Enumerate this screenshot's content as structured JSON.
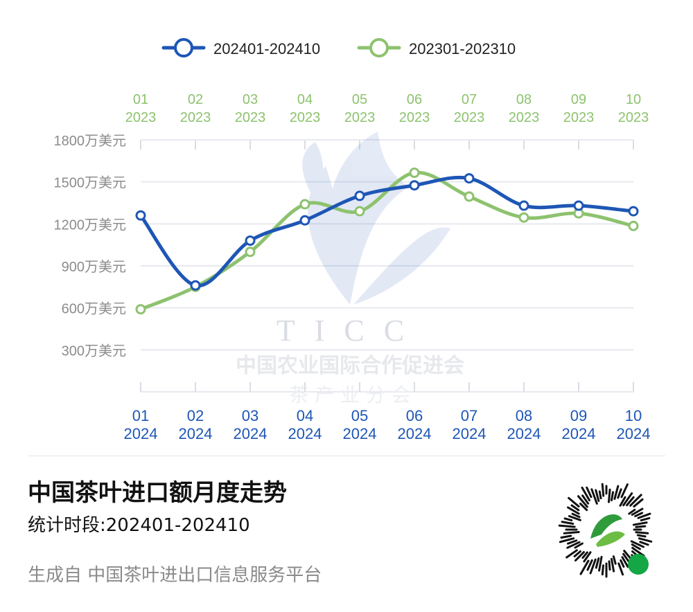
{
  "chart_data": {
    "type": "line",
    "x_top": [
      "01\n2023",
      "02\n2023",
      "03\n2023",
      "04\n2023",
      "05\n2023",
      "06\n2023",
      "07\n2023",
      "08\n2023",
      "09\n2023",
      "10\n2023"
    ],
    "x_bottom": [
      "01\n2024",
      "02\n2024",
      "03\n2024",
      "04\n2024",
      "05\n2024",
      "06\n2024",
      "07\n2024",
      "08\n2024",
      "09\n2024",
      "10\n2024"
    ],
    "ylim": [
      0,
      1800
    ],
    "yticks": [
      {
        "v": 1800,
        "label": "1800万美元"
      },
      {
        "v": 1500,
        "label": "1500万美元"
      },
      {
        "v": 1200,
        "label": "1200万美元"
      },
      {
        "v": 900,
        "label": "900万美元"
      },
      {
        "v": 600,
        "label": "600万美元"
      },
      {
        "v": 300,
        "label": "300万美元"
      }
    ],
    "grid": true,
    "series": [
      {
        "name": "202401-202410",
        "color": "#1e56b5",
        "values": [
          1260,
          760,
          1080,
          1225,
          1400,
          1475,
          1525,
          1330,
          1330,
          1290
        ]
      },
      {
        "name": "202301-202310",
        "color": "#8dc26e",
        "values": [
          590,
          750,
          1000,
          1340,
          1290,
          1565,
          1395,
          1245,
          1275,
          1185
        ]
      }
    ]
  },
  "watermark": {
    "text_main": "TICC",
    "text_org": "中国农业国际合作促进会",
    "text_branch": "茶 产 业 分 会"
  },
  "footer": {
    "title": "中国茶叶进口额月度走势",
    "subtitle": "统计时段:202401-202410",
    "source": "生成自 中国茶叶进出口信息服务平台"
  },
  "qr": {
    "icon": "mini-program-qr-icon"
  },
  "colors": {
    "series2024": "#1e56b5",
    "series2023": "#8dc26e",
    "grid": "#e6e9ef",
    "axis": "#dadde3",
    "text": "#8c8c8c"
  }
}
